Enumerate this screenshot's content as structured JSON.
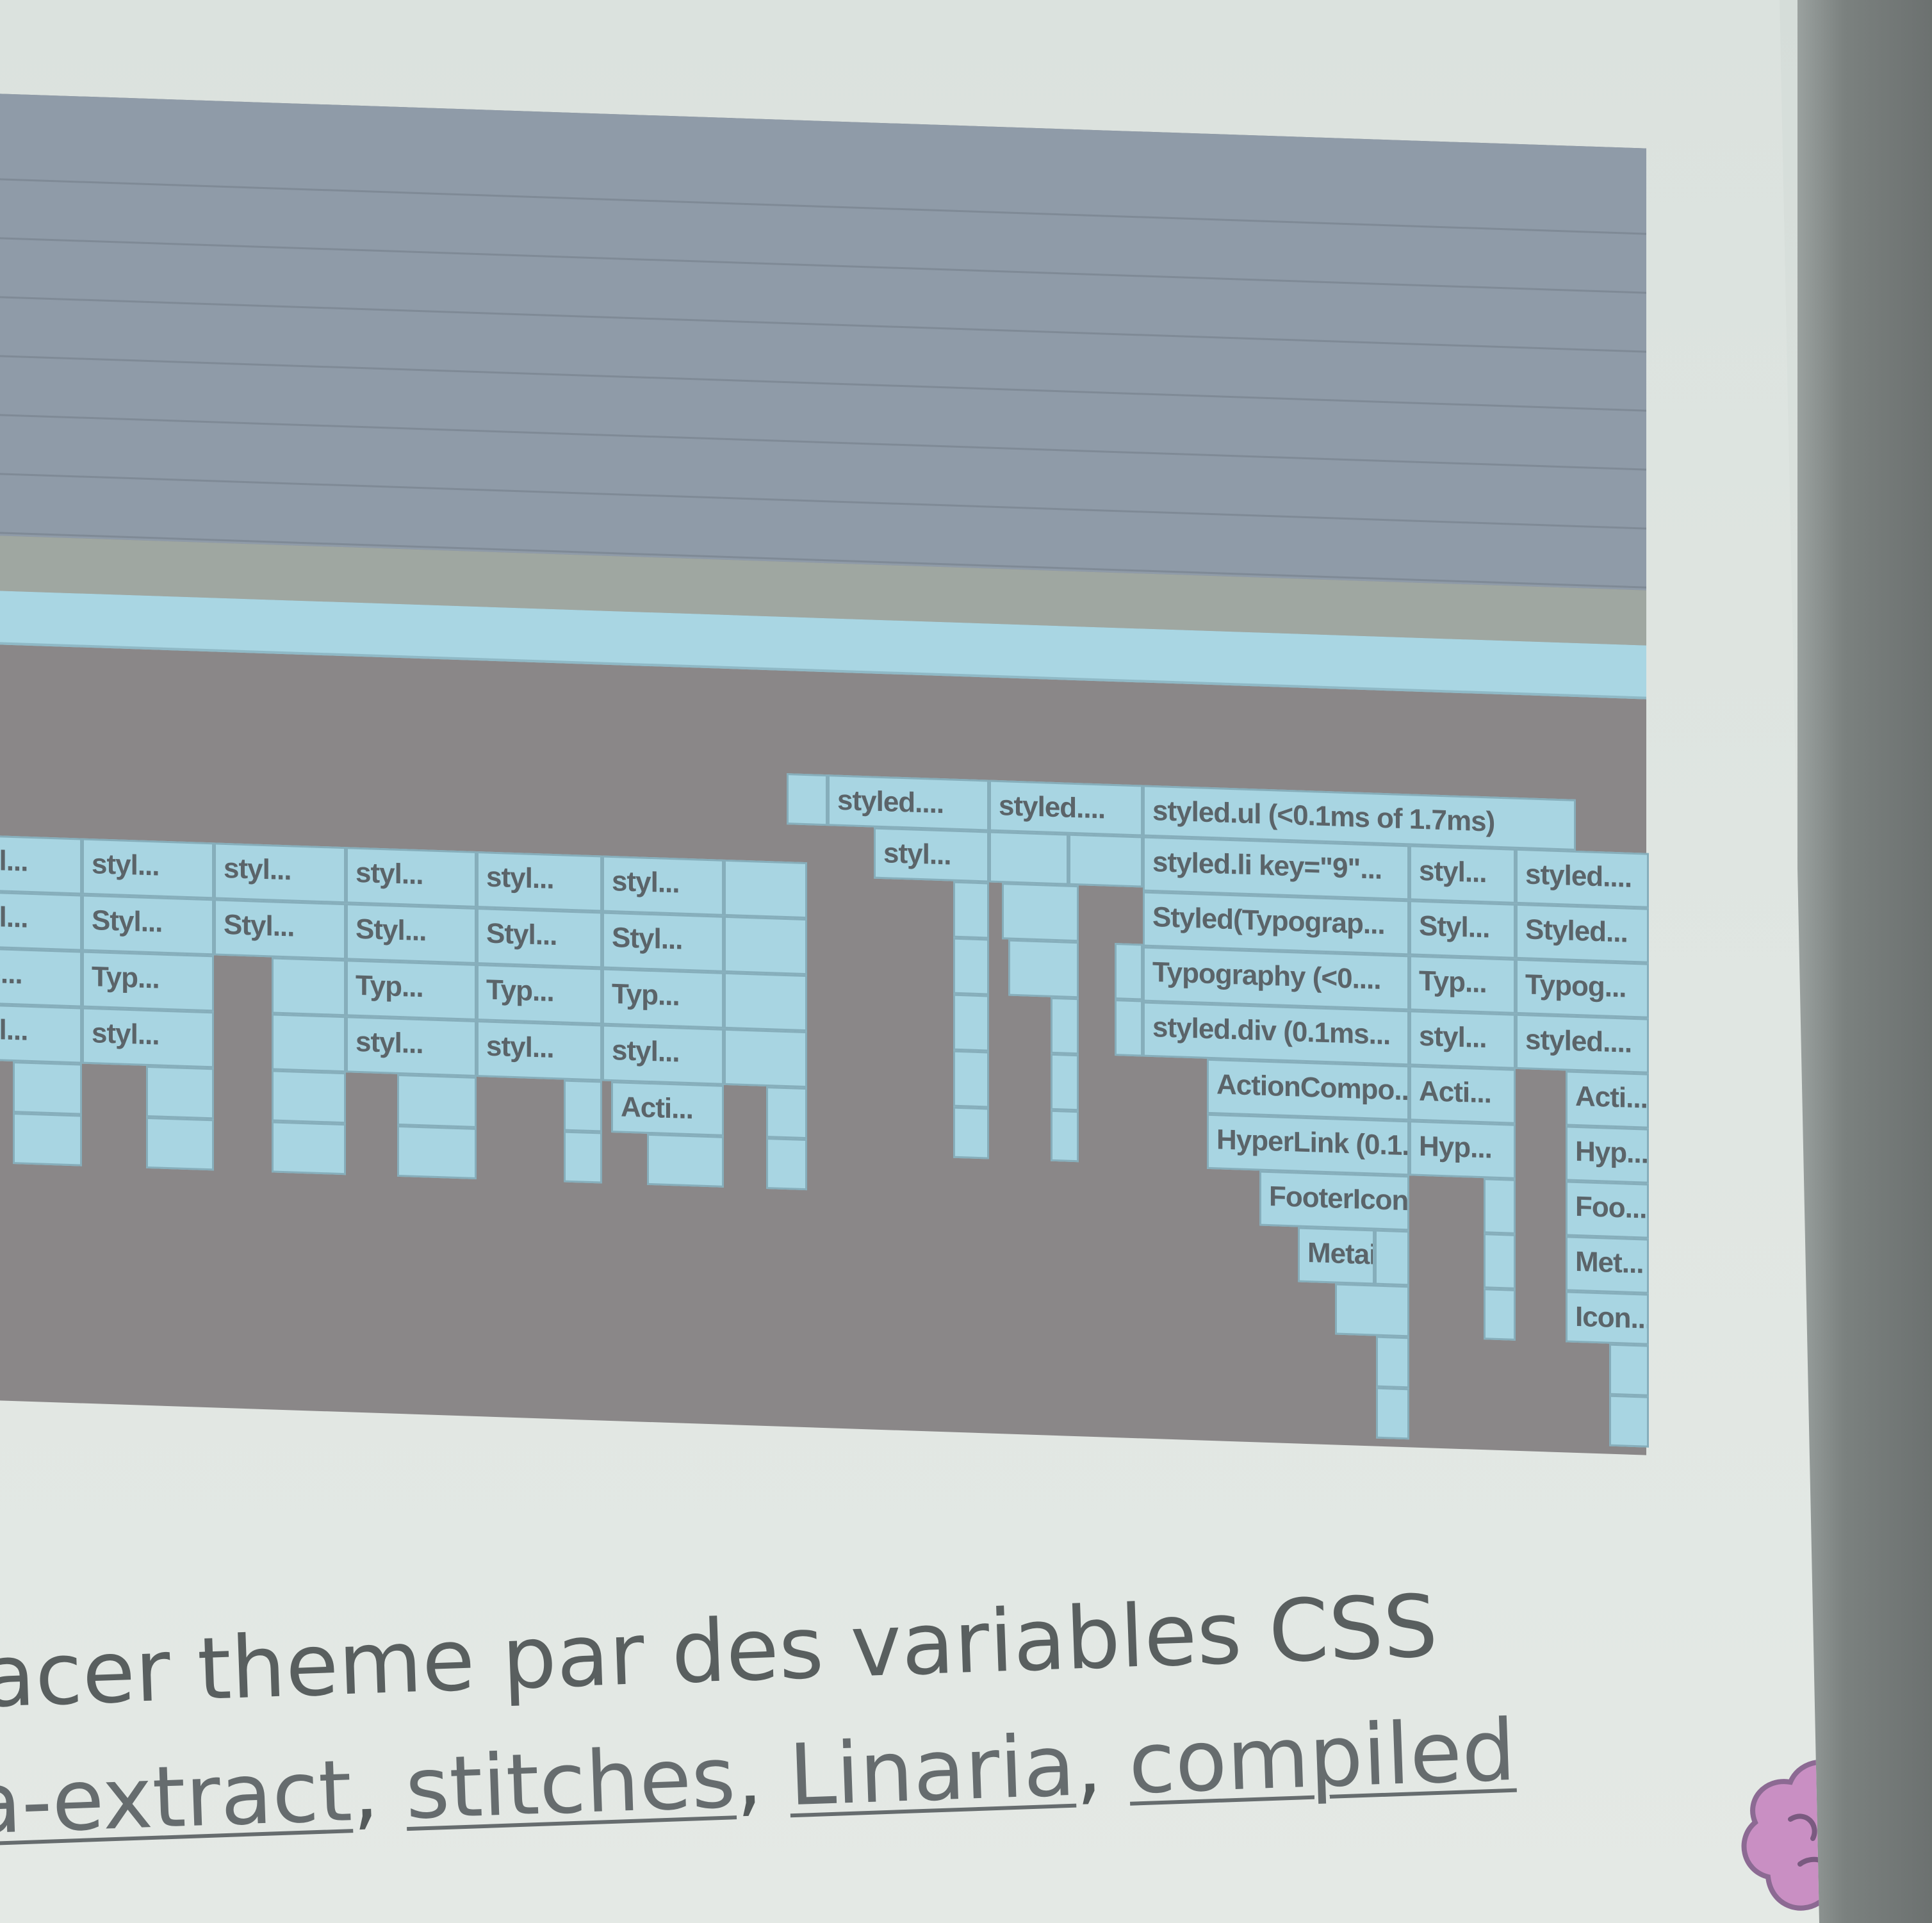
{
  "flame_chart": {
    "colors": {
      "stack_frame": "#a8d5e2",
      "idle": "#888486",
      "top_area": "#8f9ba8",
      "band": "#9fa7a1"
    },
    "columns": [
      {
        "labels": [
          "yl...",
          "yl...",
          "p...",
          "yl..."
        ]
      },
      {
        "labels": [
          "styl...",
          "Styl...",
          "Typ...",
          "styl..."
        ]
      },
      {
        "labels": [
          "styl...",
          "Styl..."
        ]
      },
      {
        "labels": [
          "styl...",
          "Styl...",
          "Typ...",
          "styl..."
        ]
      },
      {
        "labels": [
          "styl...",
          "Styl...",
          "Typ...",
          "styl..."
        ]
      },
      {
        "labels": [
          "styl...",
          "Styl...",
          "Typ...",
          "styl...",
          "Acti..."
        ]
      }
    ],
    "mid_labels": [
      "styled....",
      "styled....",
      "styl..."
    ],
    "right_stack": {
      "col1": [
        "styled.ul (<0.1ms of 1.7ms)",
        "styled.li key=\"9\"...",
        "Styled(Typograp...",
        "Typography (<0....",
        "styled.div (0.1ms...",
        "ActionCompo...",
        "HyperLink (0.1...",
        "FooterIconL...",
        "Metaic..."
      ],
      "col2": [
        "styl...",
        "Styl...",
        "Typ...",
        "styl...",
        "Acti...",
        "Hyp..."
      ],
      "col3": [
        "styled....",
        "Styled...",
        "Typog...",
        "styled....",
        "Acti...",
        "Hyp...",
        "Foo...",
        "Met...",
        "Icon..."
      ]
    }
  },
  "slide": {
    "line1": "acer theme par des variables CSS",
    "line2_links": [
      "a-extract",
      "stitches",
      "Linaria",
      "compiled"
    ],
    "separator": ","
  },
  "logo": {
    "icon": "brain-icon",
    "color": "#c98fc3"
  }
}
